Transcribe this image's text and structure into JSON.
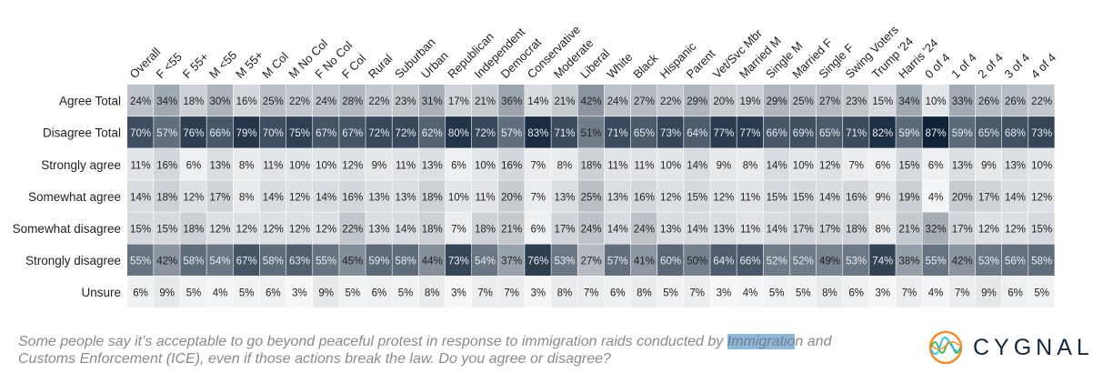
{
  "chart_data": {
    "type": "heatmap",
    "columns": [
      "Overall",
      "F <55",
      "F 55+",
      "M <55",
      "M 55+",
      "M Col",
      "M No Col",
      "F No Col",
      "F Col",
      "Rural",
      "Suburban",
      "Urban",
      "Republican",
      "Independent",
      "Democrat",
      "Conservative",
      "Moderate",
      "Liberal",
      "White",
      "Black",
      "Hispanic",
      "Parent",
      "Vet/Svc Mbr",
      "Married M",
      "Single M",
      "Married F",
      "Single F",
      "Swing Voters",
      "Trump '24",
      "Harris '24",
      "0 of 4",
      "1 of 4",
      "2 of 4",
      "3 of 4",
      "4 of 4"
    ],
    "rows": [
      {
        "label": "Agree Total",
        "values": [
          24,
          34,
          18,
          30,
          16,
          25,
          22,
          24,
          28,
          22,
          23,
          31,
          17,
          21,
          36,
          14,
          21,
          42,
          24,
          27,
          22,
          29,
          20,
          19,
          29,
          25,
          27,
          23,
          15,
          34,
          10,
          33,
          26,
          26,
          22
        ]
      },
      {
        "label": "Disagree Total",
        "values": [
          70,
          57,
          76,
          66,
          79,
          70,
          75,
          67,
          67,
          72,
          72,
          62,
          80,
          72,
          57,
          83,
          71,
          51,
          71,
          65,
          73,
          64,
          77,
          77,
          66,
          69,
          65,
          71,
          82,
          59,
          87,
          59,
          65,
          68,
          73
        ]
      },
      {
        "label": "Strongly agree",
        "values": [
          11,
          16,
          6,
          13,
          8,
          11,
          10,
          10,
          12,
          9,
          11,
          13,
          6,
          10,
          16,
          7,
          8,
          18,
          11,
          11,
          10,
          14,
          9,
          8,
          14,
          10,
          12,
          7,
          6,
          15,
          6,
          13,
          9,
          13,
          10
        ]
      },
      {
        "label": "Somewhat agree",
        "values": [
          14,
          18,
          12,
          17,
          8,
          14,
          12,
          14,
          16,
          13,
          13,
          18,
          10,
          11,
          20,
          7,
          13,
          25,
          13,
          16,
          12,
          15,
          12,
          11,
          15,
          15,
          14,
          16,
          9,
          19,
          4,
          20,
          17,
          14,
          12
        ]
      },
      {
        "label": "Somewhat disagree",
        "values": [
          15,
          15,
          18,
          12,
          12,
          12,
          12,
          12,
          22,
          13,
          14,
          18,
          7,
          18,
          21,
          6,
          17,
          24,
          14,
          24,
          13,
          14,
          13,
          11,
          14,
          17,
          17,
          18,
          8,
          21,
          32,
          17,
          12,
          12,
          15
        ]
      },
      {
        "label": "Strongly disagree",
        "values": [
          55,
          42,
          58,
          54,
          67,
          58,
          63,
          55,
          45,
          59,
          58,
          44,
          73,
          54,
          37,
          76,
          53,
          27,
          57,
          41,
          60,
          50,
          64,
          66,
          52,
          52,
          49,
          53,
          74,
          38,
          55,
          42,
          53,
          56,
          58
        ]
      },
      {
        "label": "Unsure",
        "values": [
          6,
          9,
          5,
          4,
          5,
          6,
          3,
          9,
          5,
          6,
          5,
          8,
          3,
          7,
          7,
          3,
          8,
          7,
          6,
          8,
          5,
          7,
          3,
          4,
          5,
          5,
          8,
          6,
          3,
          7,
          4,
          7,
          9,
          6,
          5
        ]
      }
    ],
    "unit": "%",
    "color_scale": [
      "#ffffff",
      "#0f2238"
    ]
  },
  "caption": {
    "before": "Some people say it’s acceptable to go beyond peaceful protest in response to immigration raids conducted by ",
    "highlight": "Immigratio",
    "after": "n and Customs Enforcement (ICE), even if those actions break the law. Do you agree or disagree?"
  },
  "logo": {
    "text": "CYGNAL",
    "colors": {
      "ring": "#f58a2a",
      "wave1": "#4cb84a",
      "wave2": "#3cc0ea"
    }
  }
}
